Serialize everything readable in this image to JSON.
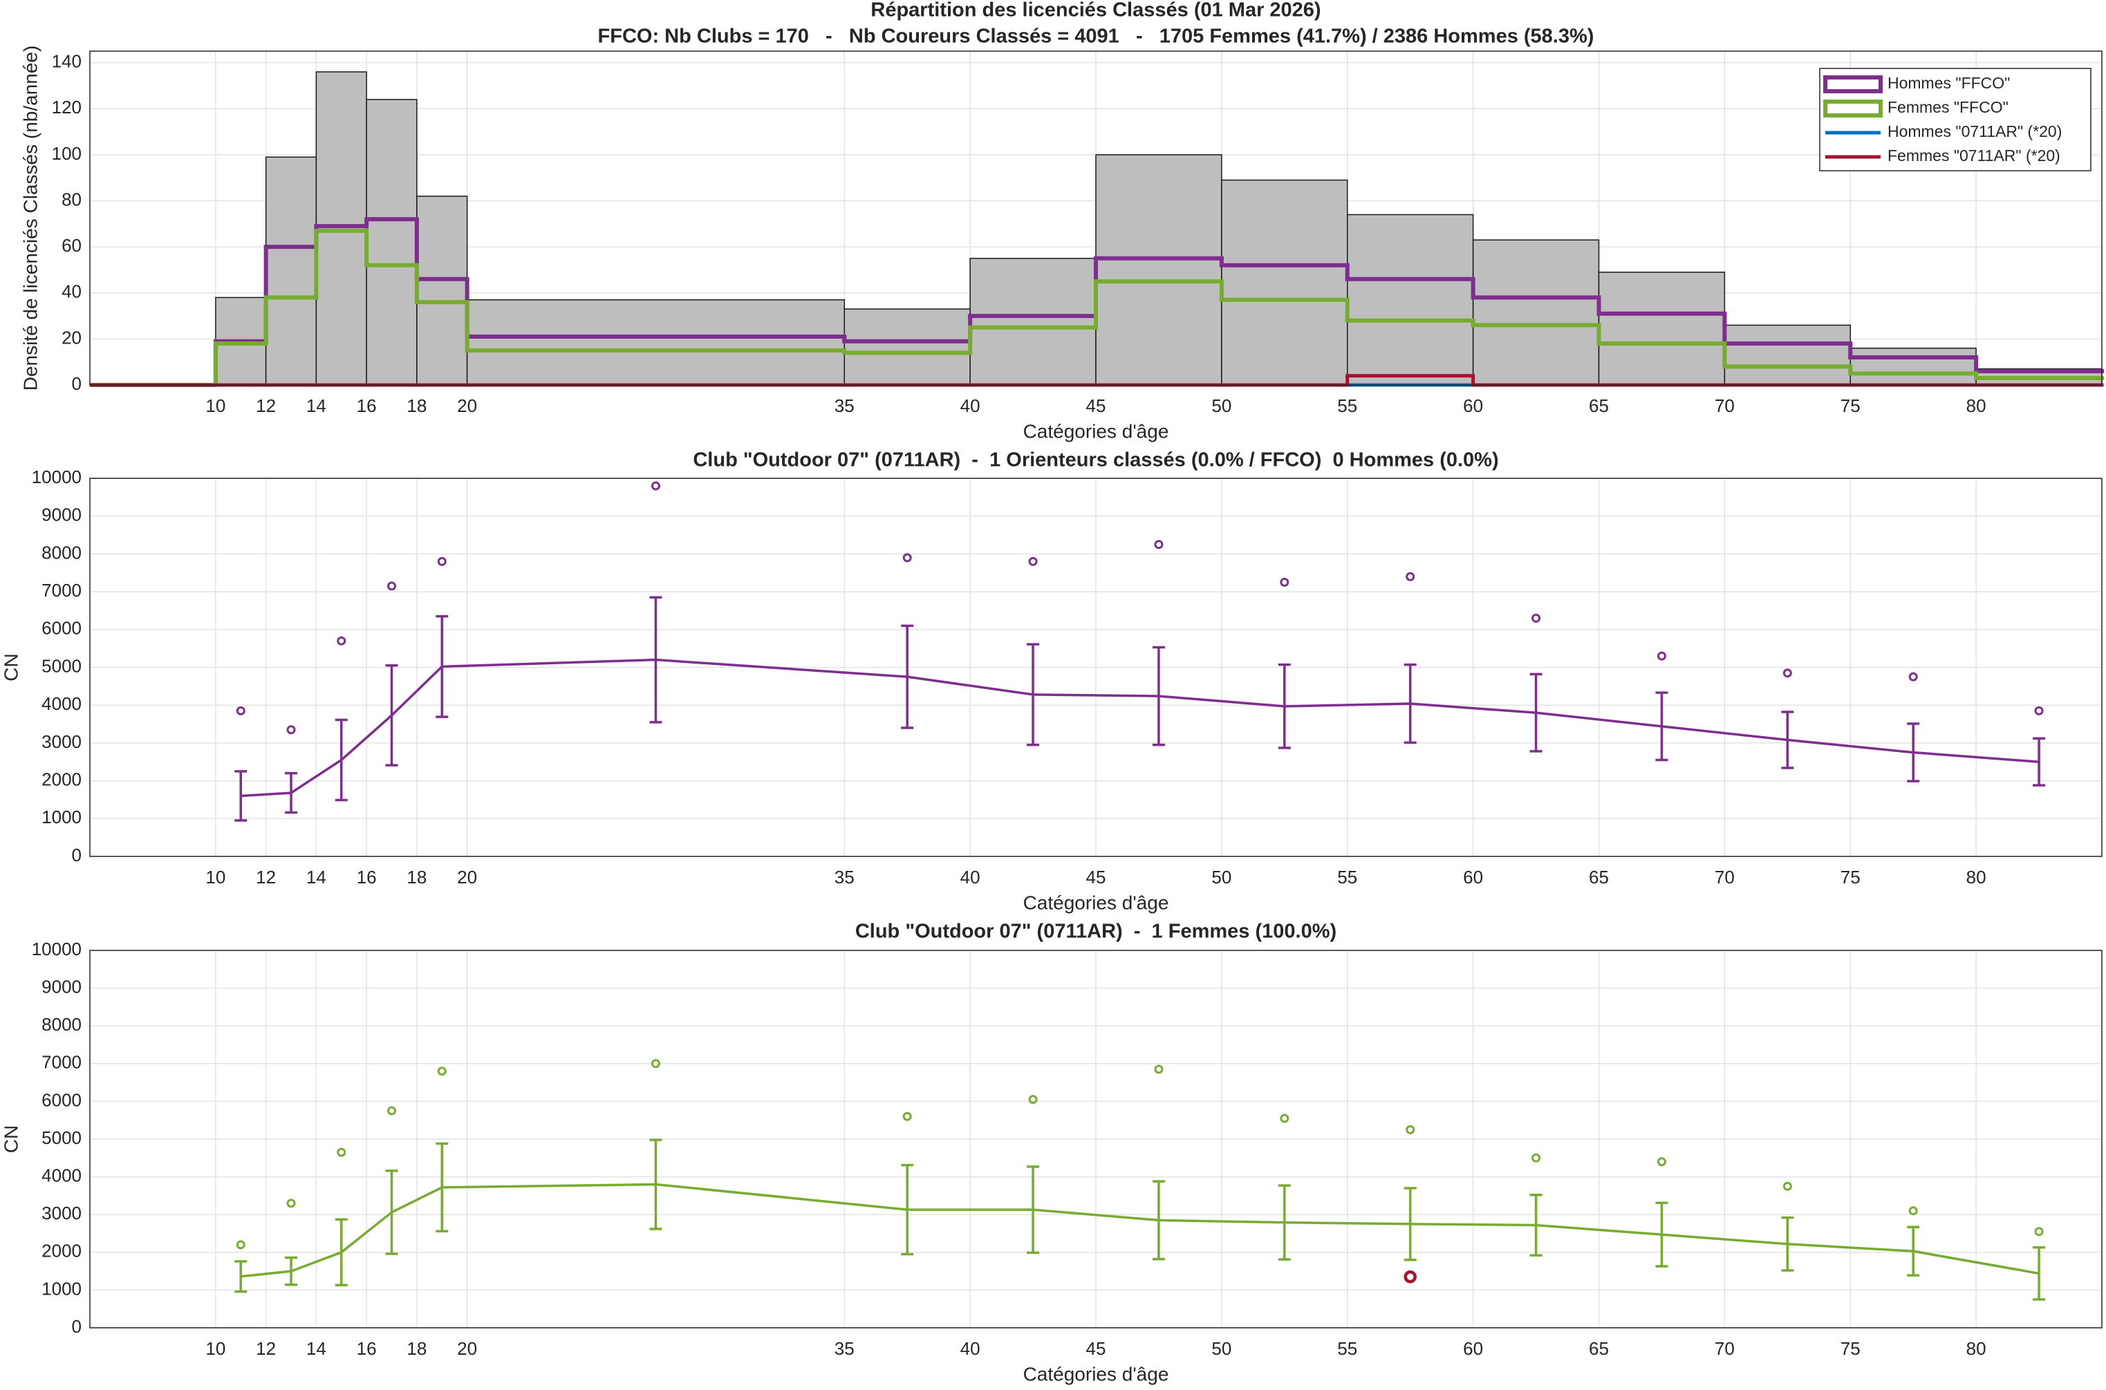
{
  "chart_data": [
    {
      "type": "histogram",
      "title": "Répartition des licenciés Classés (01 Mar 2026)",
      "subtitle": "FFCO: Nb Clubs = 170   -   Nb Coureurs Classés = 4091   -   1705 Femmes (41.7%) / 2386 Hommes (58.3%)",
      "xlabel": "Catégories d'âge",
      "ylabel": "Densité de licenciés Classés (nb/année)",
      "bins": [
        10,
        12,
        14,
        16,
        18,
        20,
        35,
        40,
        45,
        50,
        55,
        60,
        65,
        70,
        75,
        80,
        85
      ],
      "values": [
        38,
        99,
        136,
        124,
        82,
        37,
        33,
        55,
        100,
        89,
        74,
        63,
        49,
        26,
        16,
        7
      ],
      "color": "#bebebe",
      "series": [
        {
          "name": "Hommes \"FFCO\"",
          "color": "#7e2f8e",
          "values": [
            19,
            60,
            69,
            72,
            46,
            21,
            19,
            30,
            55,
            52,
            46,
            38,
            31,
            18,
            12,
            6
          ]
        },
        {
          "name": "Femmes \"FFCO\"",
          "color": "#77ac30",
          "values": [
            18,
            38,
            67,
            52,
            36,
            15,
            14,
            25,
            45,
            37,
            28,
            26,
            18,
            8,
            5,
            3
          ]
        },
        {
          "name": "Hommes \"0711AR\" (*20)",
          "color": "#0072bd",
          "values": [
            0,
            0,
            0,
            0,
            0,
            0,
            0,
            0,
            0,
            0,
            0,
            0,
            0,
            0,
            0,
            0
          ]
        },
        {
          "name": "Femmes \"0711AR\" (*20)",
          "color": "#a2142f",
          "values": [
            0,
            0,
            0,
            0,
            0,
            0,
            0,
            0,
            0,
            0,
            4,
            0,
            0,
            0,
            0,
            0
          ]
        }
      ],
      "xlim": [
        5,
        85
      ],
      "xticks": [
        10,
        12,
        14,
        16,
        18,
        20,
        35,
        40,
        45,
        50,
        55,
        60,
        65,
        70,
        75,
        80
      ],
      "ylim": [
        0,
        145
      ],
      "yticks": [
        0,
        20,
        40,
        60,
        80,
        100,
        120,
        140
      ],
      "grid": true,
      "legend": "upper right"
    },
    {
      "type": "errorbar",
      "title": "Club \"Outdoor 07\" (0711AR)  -  1 Orienteurs classés (0.0% / FFCO)  0 Hommes (0.0%)",
      "xlabel": "Catégories d'âge",
      "ylabel": "CN",
      "x": [
        11,
        13,
        15,
        17,
        19,
        27.5,
        37.5,
        42.5,
        47.5,
        52.5,
        57.5,
        62.5,
        67.5,
        72.5,
        77.5,
        82.5
      ],
      "series": [
        {
          "color": "#7e2f8e",
          "values": [
            1600,
            1680,
            2550,
            3730,
            5020,
            5200,
            4750,
            4280,
            4240,
            3970,
            4040,
            3800,
            3440,
            3080,
            2750,
            2500
          ],
          "errors": [
            650,
            520,
            1060,
            1320,
            1330,
            1650,
            1350,
            1330,
            1290,
            1100,
            1030,
            1020,
            890,
            740,
            760,
            620
          ]
        }
      ],
      "points": {
        "color": "#7e2f8e",
        "values": [
          3850,
          3350,
          5700,
          7150,
          7800,
          9800,
          7900,
          7800,
          8250,
          7250,
          7400,
          6300,
          5300,
          4850,
          4750,
          3850
        ]
      },
      "xlim": [
        5,
        85
      ],
      "xticks": [
        10,
        12,
        14,
        16,
        18,
        20,
        35,
        40,
        45,
        50,
        55,
        60,
        65,
        70,
        75,
        80
      ],
      "ylim": [
        0,
        10000
      ],
      "yticks": [
        0,
        1000,
        2000,
        3000,
        4000,
        5000,
        6000,
        7000,
        8000,
        9000,
        10000
      ],
      "grid": true
    },
    {
      "type": "errorbar",
      "title": "Club \"Outdoor 07\" (0711AR)  -  1 Femmes (100.0%)",
      "xlabel": "Catégories d'âge",
      "ylabel": "CN",
      "x": [
        11,
        13,
        15,
        17,
        19,
        27.5,
        37.5,
        42.5,
        47.5,
        52.5,
        57.5,
        62.5,
        67.5,
        72.5,
        77.5,
        82.5
      ],
      "series": [
        {
          "color": "#77ac30",
          "values": [
            1360,
            1500,
            2000,
            3060,
            3720,
            3800,
            3130,
            3130,
            2850,
            2790,
            2750,
            2720,
            2470,
            2220,
            2030,
            1440
          ],
          "errors": [
            400,
            360,
            870,
            1100,
            1160,
            1180,
            1180,
            1140,
            1030,
            980,
            950,
            800,
            840,
            700,
            640,
            690
          ]
        }
      ],
      "points": {
        "color": "#77ac30",
        "values": [
          2200,
          3300,
          4650,
          5750,
          6800,
          7000,
          5600,
          6050,
          6850,
          5550,
          5250,
          4500,
          4400,
          3750,
          3100,
          2550
        ]
      },
      "highlight": {
        "x": 57.5,
        "value": 1350,
        "color": "#a2142f"
      },
      "xlim": [
        5,
        85
      ],
      "xticks": [
        10,
        12,
        14,
        16,
        18,
        20,
        35,
        40,
        45,
        50,
        55,
        60,
        65,
        70,
        75,
        80
      ],
      "ylim": [
        0,
        10000
      ],
      "yticks": [
        0,
        1000,
        2000,
        3000,
        4000,
        5000,
        6000,
        7000,
        8000,
        9000,
        10000
      ],
      "grid": true
    }
  ]
}
